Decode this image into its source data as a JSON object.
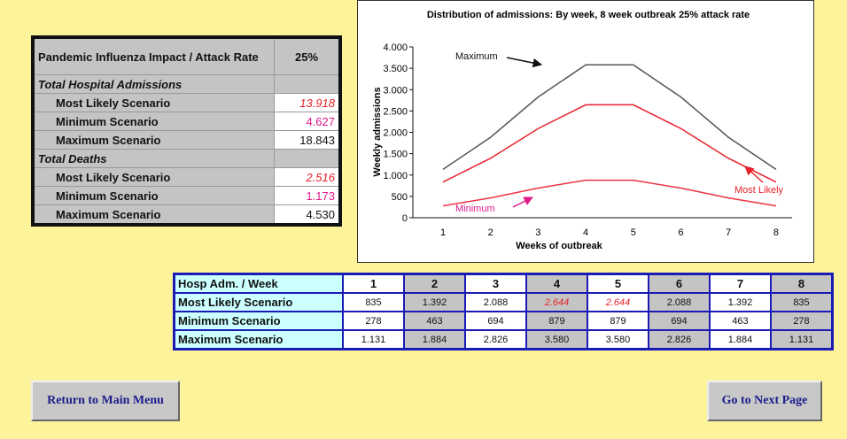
{
  "impact_table": {
    "header": [
      "Pandemic Influenza Impact / Attack Rate",
      "25%"
    ],
    "rows": [
      [
        "Total Hospital Admissions"
      ],
      [
        "Most Likely Scenario",
        "13.918"
      ],
      [
        "Minimum Scenario",
        "4.627"
      ],
      [
        "Maximum Scenario",
        "18.843"
      ],
      [
        "Total Deaths"
      ],
      [
        "Most Likely Scenario",
        "2.516"
      ],
      [
        "Minimum Scenario",
        "1.173"
      ],
      [
        "Maximum Scenario",
        "4.530"
      ]
    ]
  },
  "chart_data": {
    "type": "line",
    "title": "Distribution of admissions: By week, 8 week outbreak 25% attack rate",
    "x_label": "Weeks of outbreak",
    "y_label": "Weekly admissions",
    "categories": [
      "1",
      "2",
      "3",
      "4",
      "5",
      "6",
      "7",
      "8"
    ],
    "series": [
      {
        "name": "Maximum",
        "color": "#555555",
        "values": [
          1131,
          1884,
          2826,
          3580,
          3580,
          2826,
          1884,
          1131
        ]
      },
      {
        "name": "Most Likely",
        "color": "#e8202a",
        "values": [
          835,
          1392,
          2088,
          2644,
          2644,
          2088,
          1392,
          835
        ]
      },
      {
        "name": "Minimum",
        "color": "#ee3344",
        "values": [
          278,
          463,
          694,
          879,
          879,
          694,
          463,
          278
        ]
      }
    ],
    "ylim": [
      0,
      4000
    ],
    "yticks": [
      0,
      500,
      {
        "value": 1000,
        "label": "1.000"
      },
      {
        "value": 1500,
        "label": "1.500"
      },
      {
        "value": 2000,
        "label": "2.000"
      },
      {
        "value": 2500,
        "label": "2.500"
      },
      {
        "value": 3000,
        "label": "3.000"
      },
      {
        "value": 3500,
        "label": "3.500"
      },
      {
        "value": 4000,
        "label": "4.000"
      }
    ],
    "grid": false
  },
  "week_table": {
    "header": [
      "Hosp Adm.  /  Week",
      "1",
      "2",
      "3",
      "4",
      "5",
      "6",
      "7",
      "8"
    ],
    "rows": [
      [
        "Most Likely Scenario",
        "835",
        "1.392",
        "2.088",
        "2.644",
        "2.644",
        "2.088",
        "1.392",
        "835"
      ],
      [
        "Minimum Scenario",
        "278",
        "463",
        "694",
        "879",
        "879",
        "694",
        "463",
        "278"
      ],
      [
        "Maximum Scenario",
        "1.131",
        "1.884",
        "2.826",
        "3.580",
        "3.580",
        "2.826",
        "1.884",
        "1.131"
      ]
    ]
  },
  "buttons": [
    "Return to Main Menu",
    "Go to Next Page"
  ]
}
